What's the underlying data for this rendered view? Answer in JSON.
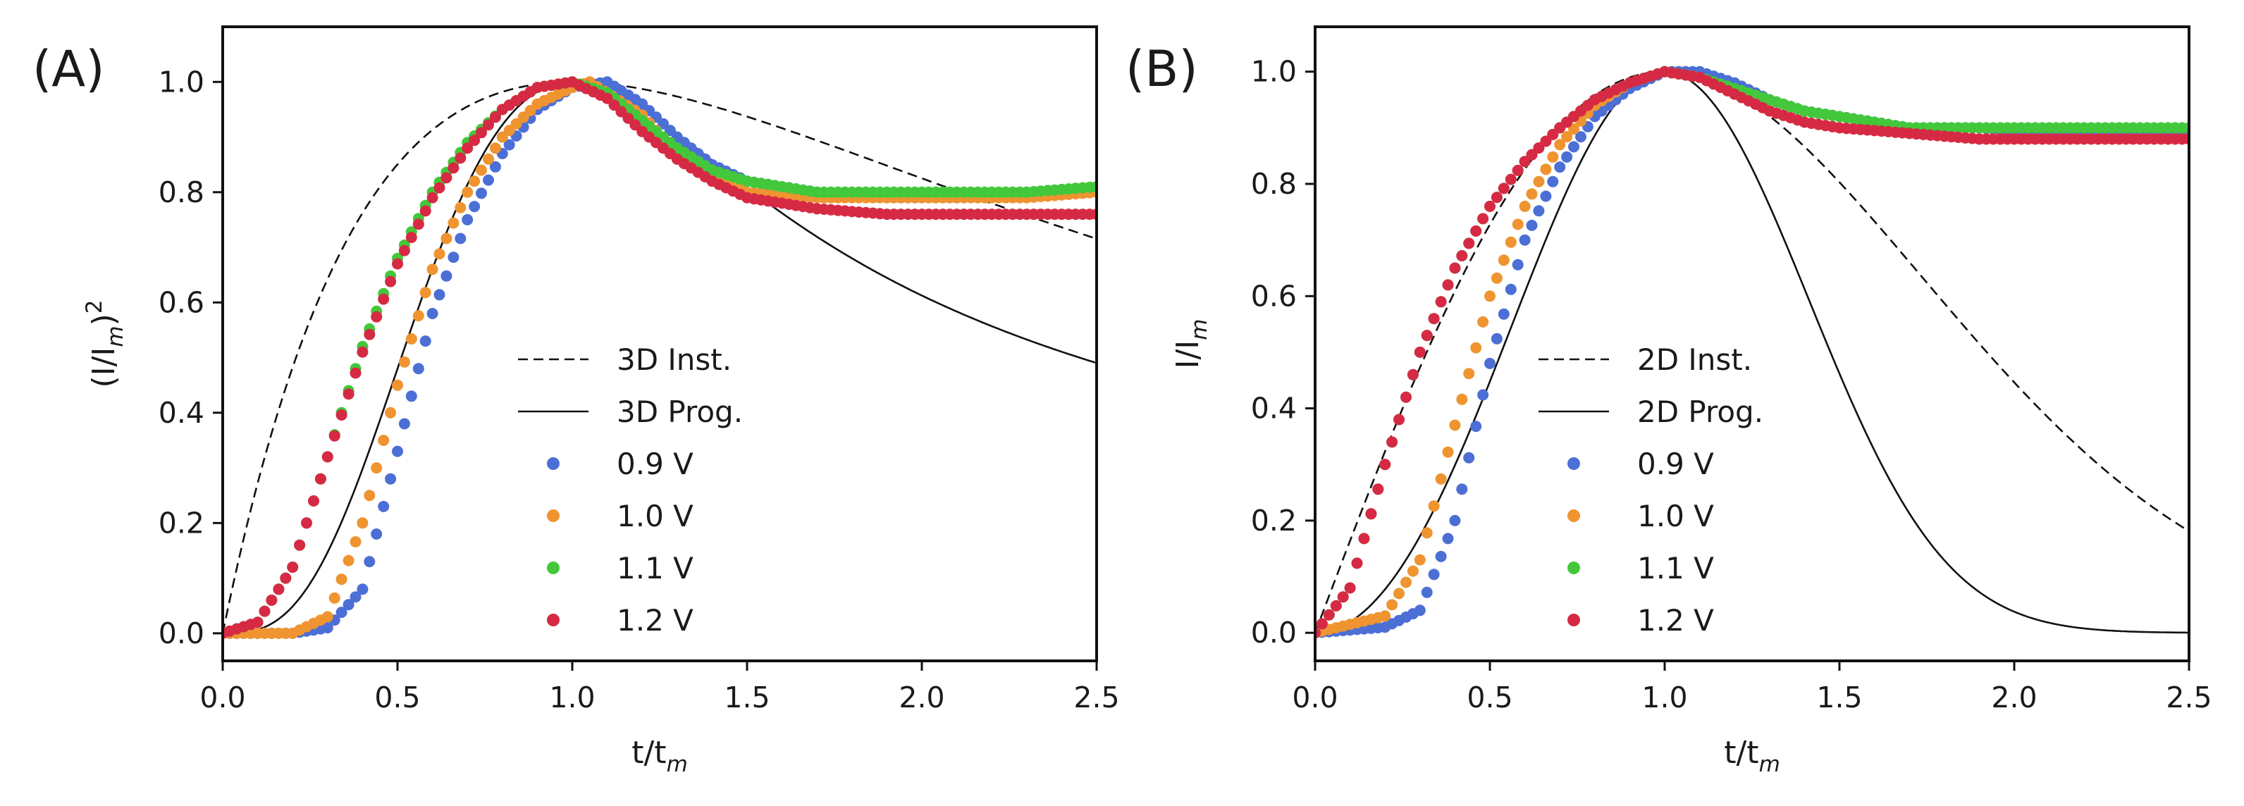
{
  "chart_data": [
    {
      "panel": "(A)",
      "type": "scatter",
      "xlabel": "t/t",
      "xlabel_sub": "m",
      "ylabel": "(I/I",
      "ylabel_sub": "m",
      "ylabel_tail": ")",
      "ylabel_sup": "2",
      "xlim": [
        0,
        2.5
      ],
      "ylim": [
        -0.05,
        1.1
      ],
      "xticks": [
        "0.0",
        "0.5",
        "1.0",
        "1.5",
        "2.0",
        "2.5"
      ],
      "yticks": [
        "0.0",
        "0.2",
        "0.4",
        "0.6",
        "0.8",
        "1.0"
      ],
      "legend_position": "center",
      "model_curves": [
        {
          "name": "3D Inst.",
          "style": "dashed",
          "model": "3d_inst"
        },
        {
          "name": "3D Prog.",
          "style": "solid",
          "model": "3d_prog"
        }
      ],
      "series": [
        {
          "name": "0.9 V",
          "color": "#4c6fd6",
          "points": [
            [
              0.0,
              0.0
            ],
            [
              0.2,
              0.0
            ],
            [
              0.3,
              0.01
            ],
            [
              0.4,
              0.08
            ],
            [
              0.5,
              0.33
            ],
            [
              0.6,
              0.58
            ],
            [
              0.7,
              0.75
            ],
            [
              0.8,
              0.87
            ],
            [
              0.9,
              0.95
            ],
            [
              1.0,
              0.99
            ],
            [
              1.1,
              1.0
            ],
            [
              1.2,
              0.96
            ],
            [
              1.3,
              0.9
            ],
            [
              1.4,
              0.85
            ],
            [
              1.5,
              0.82
            ],
            [
              1.7,
              0.8
            ],
            [
              1.9,
              0.79
            ],
            [
              2.1,
              0.79
            ],
            [
              2.3,
              0.8
            ],
            [
              2.5,
              0.8
            ]
          ]
        },
        {
          "name": "1.0 V",
          "color": "#ef9430",
          "points": [
            [
              0.0,
              0.0
            ],
            [
              0.2,
              0.0
            ],
            [
              0.3,
              0.03
            ],
            [
              0.4,
              0.2
            ],
            [
              0.5,
              0.45
            ],
            [
              0.6,
              0.66
            ],
            [
              0.7,
              0.8
            ],
            [
              0.8,
              0.9
            ],
            [
              0.9,
              0.96
            ],
            [
              1.0,
              0.99
            ],
            [
              1.05,
              1.0
            ],
            [
              1.2,
              0.94
            ],
            [
              1.3,
              0.87
            ],
            [
              1.4,
              0.83
            ],
            [
              1.5,
              0.8
            ],
            [
              1.7,
              0.79
            ],
            [
              1.9,
              0.79
            ],
            [
              2.1,
              0.79
            ],
            [
              2.3,
              0.79
            ],
            [
              2.5,
              0.8
            ]
          ]
        },
        {
          "name": "1.1 V",
          "color": "#42c83a",
          "points": [
            [
              0.0,
              0.0
            ],
            [
              0.1,
              0.02
            ],
            [
              0.2,
              0.12
            ],
            [
              0.3,
              0.32
            ],
            [
              0.4,
              0.52
            ],
            [
              0.5,
              0.68
            ],
            [
              0.6,
              0.8
            ],
            [
              0.7,
              0.89
            ],
            [
              0.8,
              0.95
            ],
            [
              0.9,
              0.99
            ],
            [
              1.0,
              1.0
            ],
            [
              1.1,
              0.98
            ],
            [
              1.2,
              0.93
            ],
            [
              1.3,
              0.88
            ],
            [
              1.4,
              0.84
            ],
            [
              1.5,
              0.82
            ],
            [
              1.7,
              0.8
            ],
            [
              1.9,
              0.8
            ],
            [
              2.1,
              0.8
            ],
            [
              2.3,
              0.8
            ],
            [
              2.5,
              0.81
            ]
          ]
        },
        {
          "name": "1.2 V",
          "color": "#d62a44",
          "points": [
            [
              0.0,
              0.0
            ],
            [
              0.1,
              0.02
            ],
            [
              0.2,
              0.12
            ],
            [
              0.3,
              0.32
            ],
            [
              0.4,
              0.51
            ],
            [
              0.5,
              0.67
            ],
            [
              0.6,
              0.79
            ],
            [
              0.7,
              0.88
            ],
            [
              0.8,
              0.95
            ],
            [
              0.9,
              0.99
            ],
            [
              1.0,
              1.0
            ],
            [
              1.1,
              0.97
            ],
            [
              1.2,
              0.91
            ],
            [
              1.3,
              0.86
            ],
            [
              1.4,
              0.82
            ],
            [
              1.5,
              0.79
            ],
            [
              1.7,
              0.77
            ],
            [
              1.9,
              0.76
            ],
            [
              2.1,
              0.76
            ],
            [
              2.3,
              0.76
            ],
            [
              2.5,
              0.76
            ]
          ]
        }
      ]
    },
    {
      "panel": "(B)",
      "type": "scatter",
      "xlabel": "t/t",
      "xlabel_sub": "m",
      "ylabel": "I/I",
      "ylabel_sub": "m",
      "ylabel_tail": "",
      "ylabel_sup": "",
      "xlim": [
        0,
        2.5
      ],
      "ylim": [
        -0.05,
        1.08
      ],
      "xticks": [
        "0.0",
        "0.5",
        "1.0",
        "1.5",
        "2.0",
        "2.5"
      ],
      "yticks": [
        "0.0",
        "0.2",
        "0.4",
        "0.6",
        "0.8",
        "1.0"
      ],
      "legend_position": "center",
      "model_curves": [
        {
          "name": "2D Inst.",
          "style": "dashed",
          "model": "2d_inst"
        },
        {
          "name": "2D Prog.",
          "style": "solid",
          "model": "2d_prog"
        }
      ],
      "series": [
        {
          "name": "0.9 V",
          "color": "#4c6fd6",
          "points": [
            [
              0.0,
              0.0
            ],
            [
              0.2,
              0.01
            ],
            [
              0.3,
              0.04
            ],
            [
              0.4,
              0.2
            ],
            [
              0.5,
              0.48
            ],
            [
              0.6,
              0.7
            ],
            [
              0.7,
              0.83
            ],
            [
              0.8,
              0.92
            ],
            [
              0.9,
              0.97
            ],
            [
              1.0,
              1.0
            ],
            [
              1.1,
              1.0
            ],
            [
              1.2,
              0.98
            ],
            [
              1.3,
              0.95
            ],
            [
              1.4,
              0.93
            ],
            [
              1.5,
              0.92
            ],
            [
              1.7,
              0.9
            ],
            [
              1.9,
              0.9
            ],
            [
              2.1,
              0.89
            ],
            [
              2.3,
              0.89
            ],
            [
              2.5,
              0.89
            ]
          ]
        },
        {
          "name": "1.0 V",
          "color": "#ef9430",
          "points": [
            [
              0.0,
              0.0
            ],
            [
              0.2,
              0.03
            ],
            [
              0.3,
              0.13
            ],
            [
              0.4,
              0.37
            ],
            [
              0.5,
              0.6
            ],
            [
              0.6,
              0.76
            ],
            [
              0.7,
              0.87
            ],
            [
              0.8,
              0.94
            ],
            [
              0.9,
              0.98
            ],
            [
              1.0,
              1.0
            ],
            [
              1.1,
              0.99
            ],
            [
              1.2,
              0.96
            ],
            [
              1.3,
              0.93
            ],
            [
              1.4,
              0.91
            ],
            [
              1.5,
              0.9
            ],
            [
              1.7,
              0.89
            ],
            [
              1.9,
              0.88
            ],
            [
              2.1,
              0.88
            ],
            [
              2.3,
              0.88
            ],
            [
              2.5,
              0.88
            ]
          ]
        },
        {
          "name": "1.1 V",
          "color": "#42c83a",
          "points": [
            [
              0.0,
              0.0
            ],
            [
              0.1,
              0.08
            ],
            [
              0.2,
              0.3
            ],
            [
              0.3,
              0.5
            ],
            [
              0.4,
              0.65
            ],
            [
              0.5,
              0.76
            ],
            [
              0.6,
              0.84
            ],
            [
              0.7,
              0.9
            ],
            [
              0.8,
              0.95
            ],
            [
              0.9,
              0.98
            ],
            [
              1.0,
              1.0
            ],
            [
              1.1,
              0.99
            ],
            [
              1.2,
              0.97
            ],
            [
              1.3,
              0.95
            ],
            [
              1.4,
              0.93
            ],
            [
              1.5,
              0.92
            ],
            [
              1.7,
              0.9
            ],
            [
              1.9,
              0.9
            ],
            [
              2.1,
              0.9
            ],
            [
              2.3,
              0.9
            ],
            [
              2.5,
              0.9
            ]
          ]
        },
        {
          "name": "1.2 V",
          "color": "#d62a44",
          "points": [
            [
              0.0,
              0.0
            ],
            [
              0.1,
              0.08
            ],
            [
              0.2,
              0.3
            ],
            [
              0.3,
              0.5
            ],
            [
              0.4,
              0.65
            ],
            [
              0.5,
              0.76
            ],
            [
              0.6,
              0.84
            ],
            [
              0.7,
              0.9
            ],
            [
              0.8,
              0.95
            ],
            [
              0.9,
              0.98
            ],
            [
              1.0,
              1.0
            ],
            [
              1.1,
              0.99
            ],
            [
              1.2,
              0.96
            ],
            [
              1.3,
              0.93
            ],
            [
              1.4,
              0.91
            ],
            [
              1.5,
              0.9
            ],
            [
              1.7,
              0.89
            ],
            [
              1.9,
              0.88
            ],
            [
              2.1,
              0.88
            ],
            [
              2.3,
              0.88
            ],
            [
              2.5,
              0.88
            ]
          ]
        }
      ]
    }
  ]
}
